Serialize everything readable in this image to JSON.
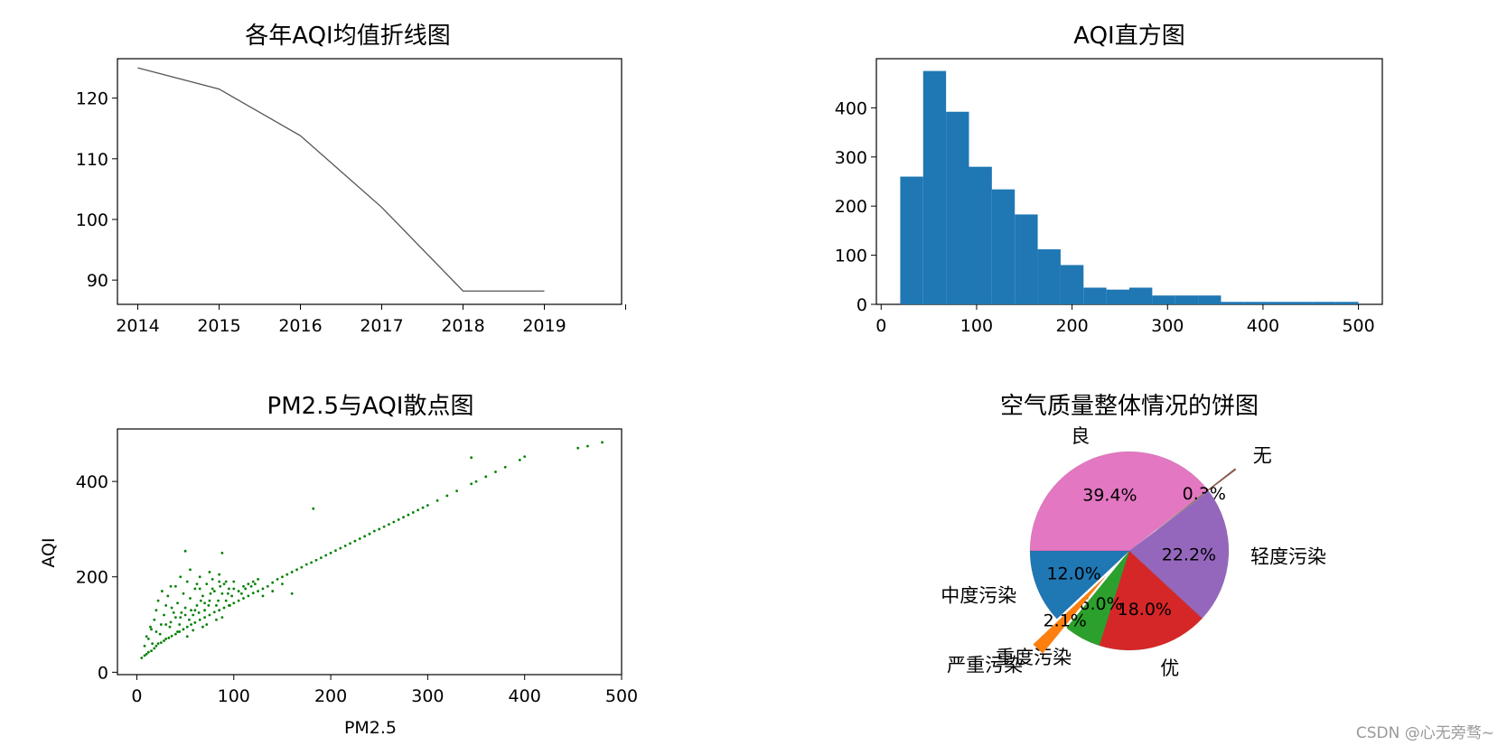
{
  "chart_data": [
    {
      "type": "line",
      "title": "各年AQI均值折线图",
      "x": [
        2014,
        2015,
        2016,
        2017,
        2018,
        2019
      ],
      "y": [
        125.0,
        121.5,
        113.8,
        102.0,
        88.2,
        88.2
      ],
      "xticks": [
        "2014",
        "2015",
        "2016",
        "2017",
        "2018",
        "2019"
      ],
      "yticks": [
        "90",
        "100",
        "110",
        "120"
      ],
      "xlim": [
        2013.75,
        2019.95
      ],
      "ylim": [
        86,
        126.5
      ],
      "color": "#555555"
    },
    {
      "type": "bar",
      "title": "AQI直方图",
      "bin_edges": [
        20,
        44,
        68,
        92,
        116,
        140,
        164,
        188,
        212,
        236,
        260,
        284,
        308,
        332,
        356,
        380,
        404,
        428,
        452,
        476,
        500
      ],
      "counts": [
        260,
        475,
        392,
        280,
        234,
        183,
        112,
        80,
        34,
        30,
        34,
        18,
        18,
        18,
        5,
        5,
        5,
        5,
        5,
        5
      ],
      "xticks": [
        "0",
        "100",
        "200",
        "300",
        "400",
        "500"
      ],
      "yticks": [
        "0",
        "100",
        "200",
        "300",
        "400"
      ],
      "xlim": [
        -5,
        525
      ],
      "ylim": [
        0,
        500
      ],
      "color": "#1f77b4"
    },
    {
      "type": "scatter",
      "title": "PM2.5与AQI散点图",
      "xlabel": "PM2.5",
      "ylabel": "AQI",
      "xticks": [
        "0",
        "100",
        "200",
        "300",
        "400",
        "500"
      ],
      "yticks": [
        "0",
        "200",
        "400"
      ],
      "xlim": [
        -20,
        500
      ],
      "ylim": [
        -5,
        510
      ],
      "color": "#008000",
      "points": [
        [
          5,
          30
        ],
        [
          8,
          35
        ],
        [
          10,
          38
        ],
        [
          12,
          42
        ],
        [
          15,
          45
        ],
        [
          18,
          50
        ],
        [
          20,
          55
        ],
        [
          22,
          60
        ],
        [
          25,
          62
        ],
        [
          28,
          66
        ],
        [
          30,
          70
        ],
        [
          33,
          72
        ],
        [
          36,
          76
        ],
        [
          40,
          80
        ],
        [
          44,
          85
        ],
        [
          48,
          90
        ],
        [
          52,
          95
        ],
        [
          56,
          100
        ],
        [
          60,
          104
        ],
        [
          65,
          110
        ],
        [
          70,
          115
        ],
        [
          75,
          120
        ],
        [
          80,
          126
        ],
        [
          85,
          130
        ],
        [
          90,
          135
        ],
        [
          95,
          140
        ],
        [
          100,
          145
        ],
        [
          105,
          150
        ],
        [
          110,
          155
        ],
        [
          115,
          160
        ],
        [
          120,
          166
        ],
        [
          125,
          170
        ],
        [
          130,
          175
        ],
        [
          135,
          180
        ],
        [
          140,
          188
        ],
        [
          145,
          195
        ],
        [
          150,
          200
        ],
        [
          155,
          205
        ],
        [
          160,
          210
        ],
        [
          165,
          215
        ],
        [
          170,
          220
        ],
        [
          175,
          226
        ],
        [
          180,
          230
        ],
        [
          185,
          235
        ],
        [
          190,
          240
        ],
        [
          195,
          245
        ],
        [
          200,
          250
        ],
        [
          205,
          255
        ],
        [
          210,
          260
        ],
        [
          215,
          265
        ],
        [
          220,
          270
        ],
        [
          225,
          275
        ],
        [
          230,
          280
        ],
        [
          235,
          285
        ],
        [
          240,
          290
        ],
        [
          245,
          296
        ],
        [
          250,
          300
        ],
        [
          255,
          305
        ],
        [
          260,
          310
        ],
        [
          265,
          315
        ],
        [
          270,
          320
        ],
        [
          275,
          325
        ],
        [
          280,
          330
        ],
        [
          285,
          335
        ],
        [
          290,
          340
        ],
        [
          295,
          345
        ],
        [
          300,
          350
        ],
        [
          310,
          360
        ],
        [
          320,
          370
        ],
        [
          330,
          380
        ],
        [
          345,
          395
        ],
        [
          350,
          400
        ],
        [
          360,
          410
        ],
        [
          370,
          420
        ],
        [
          380,
          430
        ],
        [
          395,
          445
        ],
        [
          400,
          452
        ],
        [
          455,
          470
        ],
        [
          465,
          474
        ],
        [
          480,
          482
        ],
        [
          12,
          70
        ],
        [
          15,
          90
        ],
        [
          18,
          110
        ],
        [
          20,
          130
        ],
        [
          22,
          150
        ],
        [
          25,
          100
        ],
        [
          28,
          120
        ],
        [
          30,
          140
        ],
        [
          32,
          160
        ],
        [
          35,
          105
        ],
        [
          38,
          125
        ],
        [
          40,
          180
        ],
        [
          42,
          145
        ],
        [
          45,
          115
        ],
        [
          48,
          165
        ],
        [
          50,
          135
        ],
        [
          52,
          190
        ],
        [
          55,
          155
        ],
        [
          58,
          120
        ],
        [
          60,
          175
        ],
        [
          62,
          140
        ],
        [
          65,
          200
        ],
        [
          68,
          160
        ],
        [
          70,
          130
        ],
        [
          72,
          185
        ],
        [
          75,
          150
        ],
        [
          78,
          195
        ],
        [
          80,
          170
        ],
        [
          82,
          140
        ],
        [
          85,
          205
        ],
        [
          88,
          165
        ],
        [
          90,
          185
        ],
        [
          92,
          150
        ],
        [
          95,
          175
        ],
        [
          98,
          160
        ],
        [
          100,
          190
        ],
        [
          105,
          170
        ],
        [
          110,
          180
        ],
        [
          115,
          185
        ],
        [
          120,
          190
        ],
        [
          125,
          195
        ],
        [
          8,
          55
        ],
        [
          10,
          75
        ],
        [
          14,
          95
        ],
        [
          16,
          60
        ],
        [
          24,
          80
        ],
        [
          26,
          170
        ],
        [
          34,
          95
        ],
        [
          36,
          135
        ],
        [
          44,
          100
        ],
        [
          46,
          125
        ],
        [
          54,
          110
        ],
        [
          56,
          130
        ],
        [
          64,
          125
        ],
        [
          66,
          150
        ],
        [
          74,
          140
        ],
        [
          76,
          165
        ],
        [
          84,
          150
        ],
        [
          86,
          180
        ],
        [
          94,
          165
        ],
        [
          96,
          140
        ],
        [
          30,
          100
        ],
        [
          40,
          115
        ],
        [
          50,
          120
        ],
        [
          60,
          130
        ],
        [
          70,
          145
        ],
        [
          20,
          85
        ],
        [
          35,
          180
        ],
        [
          45,
          200
        ],
        [
          65,
          175
        ],
        [
          75,
          210
        ],
        [
          85,
          190
        ],
        [
          55,
          215
        ],
        [
          62,
          185
        ],
        [
          78,
          175
        ],
        [
          92,
          190
        ],
        [
          100,
          175
        ],
        [
          108,
          165
        ],
        [
          112,
          175
        ],
        [
          118,
          180
        ],
        [
          122,
          185
        ],
        [
          42,
          85
        ],
        [
          52,
          75
        ],
        [
          58,
          88
        ],
        [
          68,
          95
        ],
        [
          72,
          100
        ],
        [
          82,
          110
        ],
        [
          88,
          115
        ],
        [
          50,
          254
        ],
        [
          88,
          250
        ],
        [
          182,
          343
        ],
        [
          345,
          450
        ],
        [
          160,
          165
        ],
        [
          130,
          160
        ],
        [
          140,
          170
        ],
        [
          150,
          185
        ]
      ]
    },
    {
      "type": "pie",
      "title": "空气质量整体情况的饼图",
      "series": [
        {
          "name": "良",
          "value": 39.4,
          "pct": "39.4%",
          "color": "#e377c2",
          "explode": 0
        },
        {
          "name": "无",
          "value": 0.3,
          "pct": "0.3%",
          "color": "#8c564b",
          "explode": 1
        },
        {
          "name": "轻度污染",
          "value": 22.2,
          "pct": "22.2%",
          "color": "#9467bd",
          "explode": 0
        },
        {
          "name": "优",
          "value": 18.0,
          "pct": "18.0%",
          "color": "#d62728",
          "explode": 0
        },
        {
          "name": "重度污染",
          "value": 6.0,
          "pct": "6.0%",
          "color": "#2ca02c",
          "explode": 0
        },
        {
          "name": "严重污染",
          "value": 2.1,
          "pct": "2.1%",
          "color": "#ff7f0e",
          "explode": 1
        },
        {
          "name": "中度污染",
          "value": 12.0,
          "pct": "12.0%",
          "color": "#1f77b4",
          "explode": 0
        }
      ]
    }
  ],
  "watermark": "CSDN @心无旁骛~"
}
